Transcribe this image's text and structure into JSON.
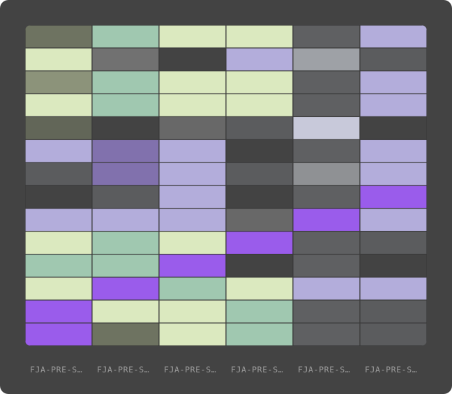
{
  "chart_data": {
    "type": "heatmap",
    "title": "",
    "xlabel": "",
    "ylabel": "",
    "columns": [
      "FJA-PRE-S…",
      "FJA-PRE-S…",
      "FJA-PRE-S…",
      "FJA-PRE-S…",
      "FJA-PRE-S…",
      "FJA-PRE-S…"
    ],
    "legend": "none",
    "grid": false,
    "palette": {
      "K": "#434343",
      "D": "#5b5c5e",
      "M": "#5f6062",
      "G": "#686868",
      "N": "#717171",
      "O": "#6e7361",
      "P": "#626658",
      "Q": "#8c937a",
      "S": "#9ea1a6",
      "T": "#8f9194",
      "U": "#c8c9da",
      "C": "#dbe9bf",
      "E": "#a0c8b0",
      "L": "#b3addb",
      "V": "#8171ad",
      "X": "#9a5ceb"
    },
    "cells": [
      [
        "O",
        "E",
        "C",
        "C",
        "M",
        "L"
      ],
      [
        "C",
        "N",
        "K",
        "L",
        "S",
        "D"
      ],
      [
        "Q",
        "E",
        "C",
        "C",
        "M",
        "L"
      ],
      [
        "C",
        "E",
        "C",
        "C",
        "M",
        "L"
      ],
      [
        "P",
        "K",
        "G",
        "D",
        "U",
        "K"
      ],
      [
        "L",
        "V",
        "L",
        "K",
        "M",
        "L"
      ],
      [
        "D",
        "V",
        "L",
        "D",
        "T",
        "L"
      ],
      [
        "K",
        "D",
        "L",
        "K",
        "M",
        "X"
      ],
      [
        "L",
        "L",
        "L",
        "G",
        "X",
        "L"
      ],
      [
        "C",
        "E",
        "C",
        "X",
        "M",
        "D"
      ],
      [
        "E",
        "E",
        "X",
        "K",
        "M",
        "K"
      ],
      [
        "C",
        "X",
        "E",
        "C",
        "L",
        "L"
      ],
      [
        "X",
        "C",
        "C",
        "E",
        "M",
        "D"
      ],
      [
        "X",
        "O",
        "C",
        "E",
        "M",
        "D"
      ]
    ]
  }
}
